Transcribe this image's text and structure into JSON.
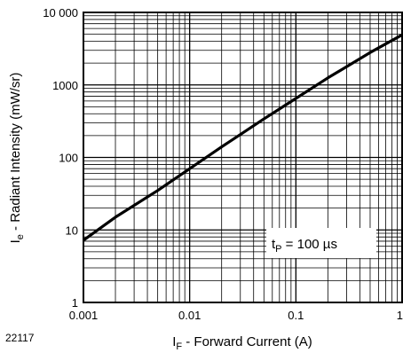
{
  "chart_data": {
    "type": "line",
    "xlabel": {
      "main": "I",
      "sub": "F",
      "rest": " - Forward Current (A)"
    },
    "ylabel": {
      "main": "I",
      "sub": "e",
      "rest": " - Radiant Intensity (mW/sr)"
    },
    "x_scale": "log",
    "y_scale": "log",
    "xlim": [
      0.001,
      1
    ],
    "ylim": [
      1,
      10000
    ],
    "x_ticks": [
      {
        "value": 0.001,
        "label": "0.001"
      },
      {
        "value": 0.01,
        "label": "0.01"
      },
      {
        "value": 0.1,
        "label": "0.1"
      },
      {
        "value": 1,
        "label": "1"
      }
    ],
    "y_ticks": [
      {
        "value": 1,
        "label": "1"
      },
      {
        "value": 10,
        "label": "10"
      },
      {
        "value": 100,
        "label": "100"
      },
      {
        "value": 1000,
        "label": "1000"
      },
      {
        "value": 10000,
        "label": "10 000"
      }
    ],
    "grid": true,
    "series": [
      {
        "x": [
          0.001,
          0.002,
          0.005,
          0.01,
          0.02,
          0.05,
          0.1,
          0.2,
          0.5,
          1
        ],
        "y": [
          7.2,
          15,
          35,
          70,
          140,
          340,
          650,
          1250,
          2800,
          4900
        ]
      }
    ],
    "annotation": {
      "main": "t",
      "sub": "P",
      "rest": " = 100 µs"
    },
    "figure_id": "22117"
  }
}
